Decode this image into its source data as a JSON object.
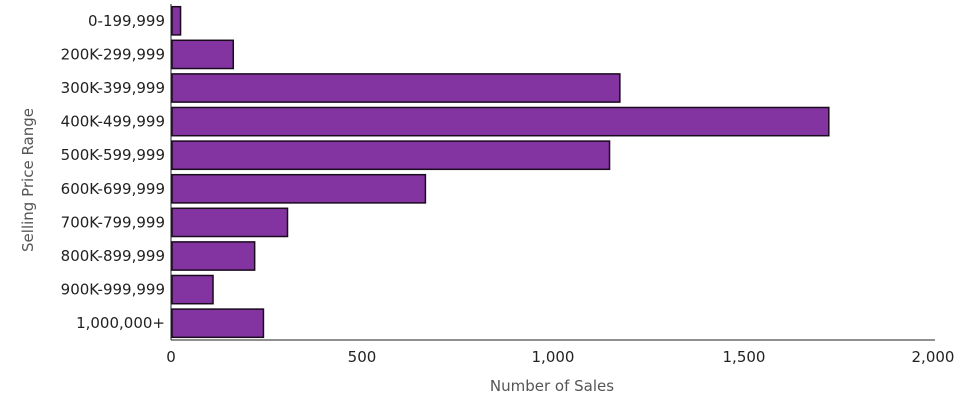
{
  "chart_data": {
    "type": "bar",
    "orientation": "horizontal",
    "categories": [
      "0-199,999",
      "200K-299,999",
      "300K-399,999",
      "400K-499,999",
      "500K-599,999",
      "600K-699,999",
      "700K-799,999",
      "800K-899,999",
      "900K-999,999",
      "1,000,000+"
    ],
    "values": [
      25,
      163,
      1175,
      1722,
      1148,
      666,
      305,
      219,
      110,
      242
    ],
    "xlabel": "Number of Sales",
    "ylabel": "Selling Price Range",
    "xlim": [
      0,
      2000
    ],
    "xticks": [
      "0",
      "500",
      "1,000",
      "1,500",
      "2,000"
    ],
    "grid": false,
    "legend": "none"
  },
  "colors": {
    "bar_fill": "#8434a0",
    "bar_stroke": "#1a0a1e",
    "axis": "#222222",
    "text": "#222222",
    "axis_title": "#555555"
  }
}
